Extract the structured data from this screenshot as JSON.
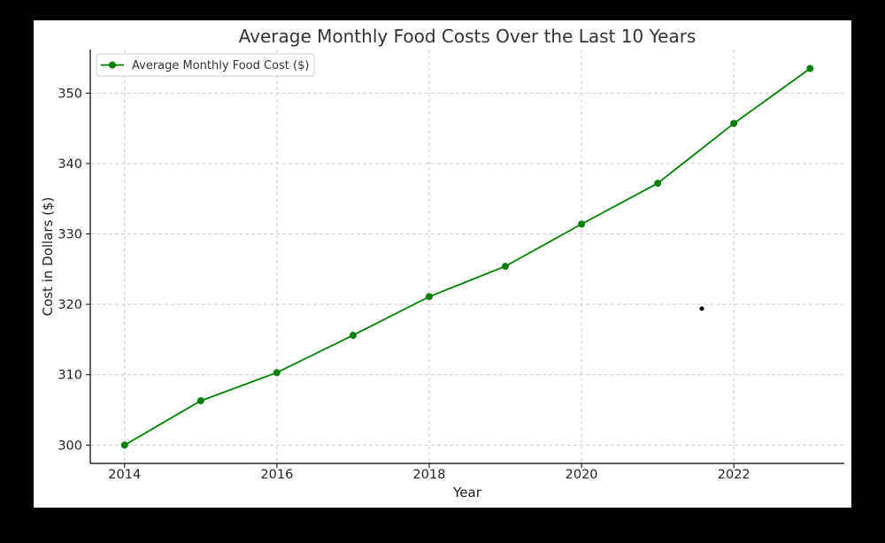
{
  "chart_data": {
    "type": "line",
    "title": "Average Monthly Food Costs Over the Last 10 Years",
    "xlabel": "Year",
    "ylabel": "Cost in Dollars ($)",
    "x": [
      2014,
      2015,
      2016,
      2017,
      2018,
      2019,
      2020,
      2021,
      2022,
      2023
    ],
    "series": [
      {
        "name": "Average Monthly Food Cost ($)",
        "values": [
          300.0,
          306.3,
          310.3,
          315.6,
          321.1,
          325.4,
          331.4,
          337.2,
          345.7,
          353.5
        ]
      }
    ],
    "xlim": [
      2013.55,
      2023.45
    ],
    "ylim": [
      297.4,
      356.2
    ],
    "x_ticks": [
      "2014",
      "2016",
      "2018",
      "2020",
      "2022"
    ],
    "y_ticks": [
      "300",
      "310",
      "320",
      "330",
      "340",
      "350"
    ],
    "grid": true,
    "legend_position": "top-left",
    "colors": {
      "line": "#008000",
      "axis": "#000000"
    }
  }
}
